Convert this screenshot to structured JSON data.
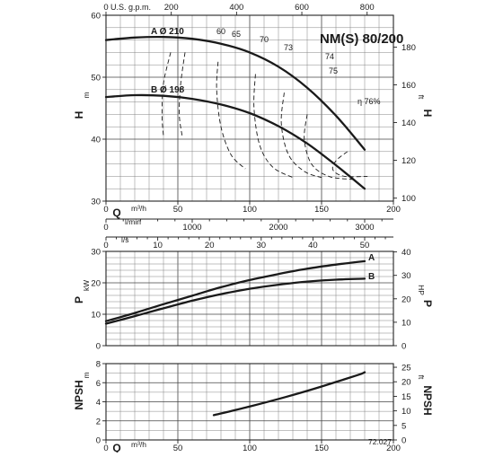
{
  "title": "NM(S) 80/200",
  "code": "72.027",
  "chart_data": [
    {
      "type": "line",
      "name": "head",
      "xlabel": "Q",
      "xunit": "m³/h",
      "xlim": [
        0,
        200
      ],
      "xticks": [
        0,
        50,
        100,
        150,
        200
      ],
      "ylabel": "H",
      "yunit": "m",
      "ylim": [
        30,
        60
      ],
      "yticks": [
        30,
        40,
        50,
        60
      ],
      "y2label": "H",
      "y2unit": "ft",
      "y2ticks": [
        100,
        120,
        140,
        160,
        180
      ],
      "top_axis": {
        "label": "U.S. g.p.m.",
        "ticks": [
          0,
          200,
          400,
          600,
          800
        ]
      },
      "bottom_axis2": {
        "label": "l/min",
        "ticks": [
          0,
          1000,
          2000,
          3000
        ]
      },
      "bottom_axis3": {
        "label": "l/s",
        "ticks": [
          0,
          10,
          20,
          30,
          40,
          50
        ]
      },
      "series": [
        {
          "name": "A",
          "label": "A Ø 210",
          "x": [
            0,
            20,
            40,
            60,
            80,
            100,
            120,
            140,
            160,
            180
          ],
          "y": [
            56.0,
            56.4,
            56.5,
            56.2,
            55.4,
            54.0,
            51.7,
            48.3,
            43.8,
            38.3
          ]
        },
        {
          "name": "B",
          "label": "B Ø 198",
          "x": [
            0,
            20,
            40,
            60,
            80,
            100,
            120,
            140,
            160,
            180
          ],
          "y": [
            46.8,
            47.1,
            47.0,
            46.5,
            45.6,
            44.2,
            42.1,
            39.3,
            35.8,
            32.0
          ]
        }
      ],
      "efficiency_labels": [
        "60",
        "65",
        "70",
        "73",
        "74",
        "75",
        "η 76%"
      ]
    },
    {
      "type": "line",
      "name": "power",
      "xlim": [
        0,
        200
      ],
      "ylabel": "P",
      "yunit": "kW",
      "ylim": [
        0,
        30
      ],
      "yticks": [
        0,
        10,
        20,
        30
      ],
      "y2label": "P",
      "y2unit": "HP",
      "y2ticks": [
        0,
        10,
        20,
        30,
        40
      ],
      "series": [
        {
          "name": "A",
          "x": [
            0,
            20,
            40,
            60,
            80,
            100,
            120,
            140,
            160,
            180
          ],
          "y": [
            7.8,
            10.4,
            13.2,
            15.9,
            18.6,
            20.9,
            22.8,
            24.5,
            25.8,
            26.9
          ]
        },
        {
          "name": "B",
          "x": [
            0,
            20,
            40,
            60,
            80,
            100,
            120,
            140,
            160,
            180
          ],
          "y": [
            7.0,
            9.4,
            11.9,
            14.3,
            16.4,
            18.1,
            19.4,
            20.4,
            21.0,
            21.3
          ]
        }
      ]
    },
    {
      "type": "line",
      "name": "npsh",
      "xlabel": "Q",
      "xunit": "m³/h",
      "xlim": [
        0,
        200
      ],
      "xticks": [
        0,
        50,
        100,
        150,
        200
      ],
      "ylabel": "NPSH",
      "yunit": "m",
      "ylim": [
        0,
        8
      ],
      "yticks": [
        0,
        2,
        4,
        6,
        8
      ],
      "y2label": "NPSH",
      "y2unit": "ft",
      "y2ticks": [
        0,
        5,
        10,
        15,
        20,
        25
      ],
      "series": [
        {
          "name": "NPSH",
          "x": [
            75,
            100,
            125,
            150,
            175,
            180
          ],
          "y": [
            2.6,
            3.5,
            4.5,
            5.6,
            6.8,
            7.1
          ]
        }
      ]
    }
  ]
}
